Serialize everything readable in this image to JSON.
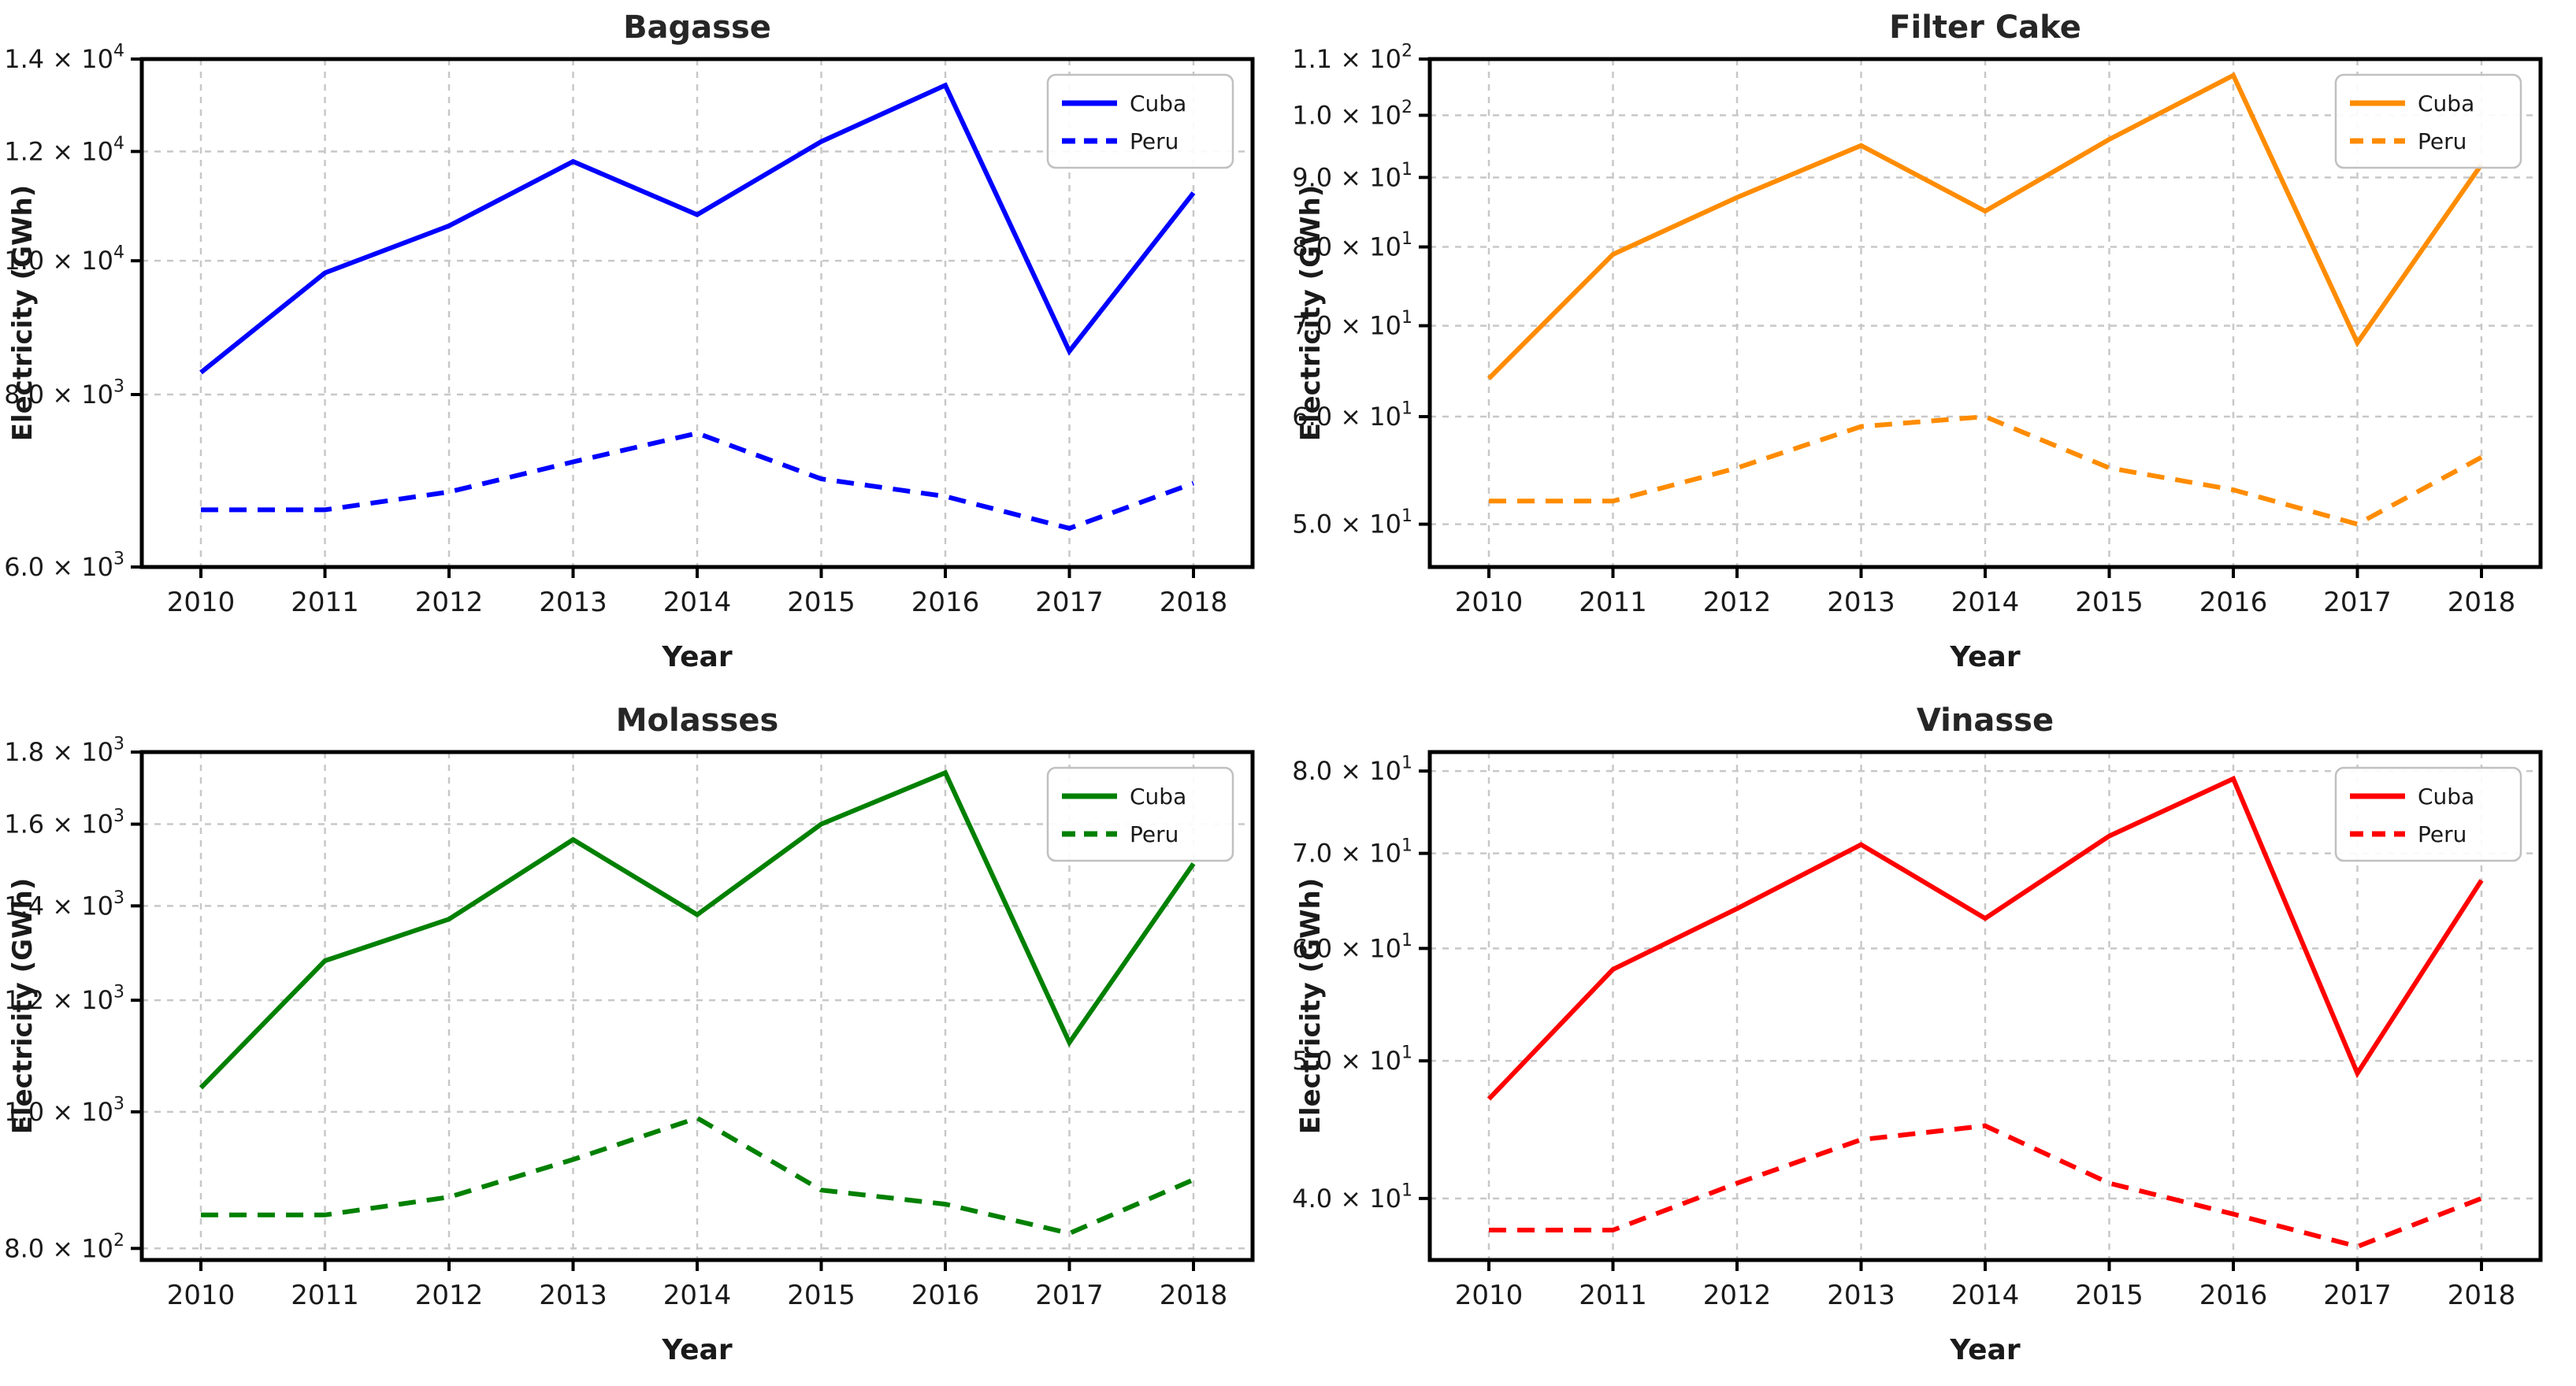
{
  "page": {
    "background": "#ffffff",
    "grid_color": "#c8c8c8",
    "spine_color": "#000000",
    "text_color": "#1a1a1a"
  },
  "chart_data": [
    {
      "type": "line",
      "title": "Bagasse",
      "xlabel": "Year",
      "ylabel": "Electricity (GWh)",
      "color": "#0000ff",
      "yscale": "log",
      "ylim": [
        6000,
        14000
      ],
      "x": [
        2010,
        2011,
        2012,
        2013,
        2014,
        2015,
        2016,
        2017,
        2018
      ],
      "series": [
        {
          "name": "Cuba",
          "linestyle": "solid",
          "values": [
            8300,
            9800,
            10600,
            11800,
            10800,
            12200,
            13400,
            8600,
            11200
          ]
        },
        {
          "name": "Peru",
          "linestyle": "dashed",
          "values": [
            6600,
            6600,
            6800,
            7150,
            7500,
            6950,
            6750,
            6400,
            6900
          ]
        }
      ],
      "yticks": [
        {
          "value": 14000,
          "label": "1.4 × 10^4"
        },
        {
          "value": 12000,
          "label": "1.2 × 10^4"
        },
        {
          "value": 10000,
          "label": "1.0 × 10^4"
        },
        {
          "value": 8000,
          "label": "8.0 × 10^3"
        },
        {
          "value": 6000,
          "label": "6.0 × 10^3"
        }
      ],
      "legend": {
        "location": "upper right",
        "entries": [
          "Cuba",
          "Peru"
        ]
      },
      "grid": true
    },
    {
      "type": "line",
      "title": "Filter Cake",
      "xlabel": "Year",
      "ylabel": "Electricity (GWh)",
      "color": "#ff8c00",
      "yscale": "log",
      "ylim": [
        46.5,
        110
      ],
      "x": [
        2010,
        2011,
        2012,
        2013,
        2014,
        2015,
        2016,
        2017,
        2018
      ],
      "series": [
        {
          "name": "Cuba",
          "linestyle": "solid",
          "values": [
            64,
            79,
            87,
            95,
            85,
            96,
            107,
            68,
            92
          ]
        },
        {
          "name": "Peru",
          "linestyle": "dashed",
          "values": [
            52,
            52,
            55,
            59,
            60,
            55,
            53,
            50,
            56
          ]
        }
      ],
      "yticks": [
        {
          "value": 110,
          "label": "1.1 × 10^2"
        },
        {
          "value": 100,
          "label": "1.0 × 10^2"
        },
        {
          "value": 90,
          "label": "9.0 × 10^1"
        },
        {
          "value": 80,
          "label": "8.0 × 10^1"
        },
        {
          "value": 70,
          "label": "7.0 × 10^1"
        },
        {
          "value": 60,
          "label": "6.0 × 10^1"
        },
        {
          "value": 50,
          "label": "5.0 × 10^1"
        }
      ],
      "legend": {
        "location": "upper right",
        "entries": [
          "Cuba",
          "Peru"
        ]
      },
      "grid": true
    },
    {
      "type": "line",
      "title": "Molasses",
      "xlabel": "Year",
      "ylabel": "Electricity (GWh)",
      "color": "#008000",
      "yscale": "log",
      "ylim": [
        785,
        1800
      ],
      "x": [
        2010,
        2011,
        2012,
        2013,
        2014,
        2015,
        2016,
        2017,
        2018
      ],
      "series": [
        {
          "name": "Cuba",
          "linestyle": "solid",
          "values": [
            1040,
            1280,
            1370,
            1560,
            1380,
            1600,
            1740,
            1120,
            1500
          ]
        },
        {
          "name": "Peru",
          "linestyle": "dashed",
          "values": [
            845,
            845,
            870,
            925,
            990,
            880,
            860,
            820,
            895
          ]
        }
      ],
      "yticks": [
        {
          "value": 1800,
          "label": "1.8 × 10^3"
        },
        {
          "value": 1600,
          "label": "1.6 × 10^3"
        },
        {
          "value": 1400,
          "label": "1.4 × 10^3"
        },
        {
          "value": 1200,
          "label": "1.2 × 10^3"
        },
        {
          "value": 1000,
          "label": "1.0 × 10^3"
        },
        {
          "value": 800,
          "label": "8.0 × 10^2"
        }
      ],
      "legend": {
        "location": "upper right",
        "entries": [
          "Cuba",
          "Peru"
        ]
      },
      "grid": true
    },
    {
      "type": "line",
      "title": "Vinasse",
      "xlabel": "Year",
      "ylabel": "Electricity (GWh)",
      "color": "#ff0000",
      "yscale": "log",
      "ylim": [
        36.2,
        82.5
      ],
      "x": [
        2010,
        2011,
        2012,
        2013,
        2014,
        2015,
        2016,
        2017,
        2018
      ],
      "series": [
        {
          "name": "Cuba",
          "linestyle": "solid",
          "values": [
            47,
            58,
            64,
            71,
            63,
            72,
            79,
            49,
            67
          ]
        },
        {
          "name": "Peru",
          "linestyle": "dashed",
          "values": [
            38,
            38,
            41,
            44,
            45,
            41,
            39,
            37,
            40
          ]
        }
      ],
      "yticks": [
        {
          "value": 80,
          "label": "8.0 × 10^1"
        },
        {
          "value": 70,
          "label": "7.0 × 10^1"
        },
        {
          "value": 60,
          "label": "6.0 × 10^1"
        },
        {
          "value": 50,
          "label": "5.0 × 10^1"
        },
        {
          "value": 40,
          "label": "4.0 × 10^1"
        }
      ],
      "legend": {
        "location": "upper right",
        "entries": [
          "Cuba",
          "Peru"
        ]
      },
      "grid": true
    }
  ]
}
